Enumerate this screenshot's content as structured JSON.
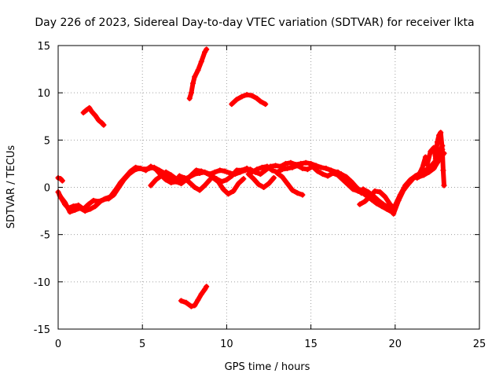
{
  "chart_data": {
    "type": "scatter",
    "title": "Day 226 of 2023, Sidereal Day-to-day VTEC variation (SDTVAR) for receiver lkta",
    "xlabel": "GPS time / hours",
    "ylabel": "SDTVAR / TECUs",
    "xlim": [
      0,
      25
    ],
    "ylim": [
      -15,
      15
    ],
    "xticks": [
      0,
      5,
      10,
      15,
      20,
      25
    ],
    "yticks": [
      -15,
      -10,
      -5,
      0,
      5,
      10,
      15
    ],
    "grid": true,
    "marker": "+",
    "color": "#ff0000",
    "series": [
      {
        "name": "main",
        "points": [
          [
            0.0,
            -0.5
          ],
          [
            0.2,
            -1.2
          ],
          [
            0.4,
            -1.8
          ],
          [
            0.6,
            -2.2
          ],
          [
            0.9,
            -2.0
          ],
          [
            1.2,
            -1.9
          ],
          [
            1.5,
            -2.3
          ],
          [
            1.8,
            -1.8
          ],
          [
            2.1,
            -1.4
          ],
          [
            2.4,
            -1.5
          ],
          [
            2.7,
            -1.3
          ],
          [
            3.0,
            -1.2
          ],
          [
            3.3,
            -0.8
          ],
          [
            3.6,
            0.0
          ],
          [
            3.9,
            0.8
          ],
          [
            4.2,
            1.4
          ],
          [
            4.5,
            1.8
          ],
          [
            4.8,
            2.0
          ],
          [
            5.1,
            1.9
          ],
          [
            5.4,
            2.0
          ],
          [
            5.7,
            2.1
          ],
          [
            6.0,
            1.8
          ],
          [
            6.3,
            1.5
          ],
          [
            6.6,
            1.0
          ],
          [
            6.9,
            0.8
          ],
          [
            7.2,
            0.7
          ],
          [
            7.5,
            0.9
          ],
          [
            7.8,
            1.1
          ],
          [
            8.1,
            1.4
          ],
          [
            8.4,
            1.5
          ],
          [
            8.7,
            1.6
          ],
          [
            9.0,
            1.4
          ],
          [
            9.3,
            1.6
          ],
          [
            9.6,
            1.8
          ],
          [
            9.9,
            1.7
          ],
          [
            10.2,
            1.5
          ],
          [
            10.5,
            1.4
          ],
          [
            10.8,
            1.6
          ],
          [
            11.1,
            1.8
          ],
          [
            11.4,
            1.9
          ],
          [
            11.7,
            1.6
          ],
          [
            12.0,
            1.4
          ],
          [
            12.3,
            1.8
          ],
          [
            12.6,
            2.2
          ],
          [
            12.9,
            2.3
          ],
          [
            13.2,
            2.2
          ],
          [
            13.5,
            2.5
          ],
          [
            13.8,
            2.6
          ],
          [
            14.1,
            2.4
          ],
          [
            14.4,
            2.5
          ],
          [
            14.7,
            2.6
          ],
          [
            15.0,
            2.5
          ],
          [
            15.3,
            2.3
          ],
          [
            15.6,
            2.1
          ],
          [
            15.9,
            2.0
          ],
          [
            16.2,
            1.8
          ],
          [
            16.5,
            1.6
          ],
          [
            16.8,
            1.4
          ],
          [
            17.1,
            1.1
          ],
          [
            17.4,
            0.6
          ],
          [
            17.7,
            0.0
          ],
          [
            18.0,
            -0.5
          ],
          [
            18.3,
            -0.9
          ],
          [
            18.6,
            -1.3
          ],
          [
            18.9,
            -1.7
          ],
          [
            19.2,
            -2.0
          ],
          [
            19.5,
            -2.3
          ],
          [
            19.8,
            -2.6
          ],
          [
            20.0,
            -1.9
          ],
          [
            20.3,
            -0.8
          ],
          [
            20.6,
            0.2
          ],
          [
            20.9,
            0.8
          ],
          [
            21.2,
            1.2
          ],
          [
            21.5,
            1.5
          ],
          [
            21.8,
            1.8
          ],
          [
            22.1,
            2.2
          ],
          [
            22.4,
            2.8
          ],
          [
            22.6,
            3.6
          ],
          [
            22.8,
            4.4
          ]
        ]
      },
      {
        "name": "main-b",
        "points": [
          [
            0.1,
            -0.9
          ],
          [
            0.4,
            -1.6
          ],
          [
            0.7,
            -2.6
          ],
          [
            1.0,
            -2.4
          ],
          [
            1.3,
            -2.2
          ],
          [
            1.6,
            -2.5
          ],
          [
            1.9,
            -2.3
          ],
          [
            2.2,
            -2.0
          ],
          [
            2.5,
            -1.5
          ],
          [
            2.8,
            -1.2
          ],
          [
            3.1,
            -1.0
          ],
          [
            3.4,
            -0.3
          ],
          [
            3.7,
            0.5
          ],
          [
            4.0,
            1.1
          ],
          [
            4.3,
            1.7
          ],
          [
            4.6,
            2.1
          ],
          [
            4.9,
            2.0
          ],
          [
            5.2,
            1.8
          ],
          [
            5.5,
            2.2
          ],
          [
            5.8,
            1.9
          ],
          [
            6.1,
            1.3
          ],
          [
            6.4,
            0.8
          ],
          [
            6.7,
            0.5
          ],
          [
            7.0,
            0.6
          ],
          [
            7.3,
            0.4
          ],
          [
            7.6,
            0.8
          ],
          [
            7.9,
            1.3
          ],
          [
            8.2,
            1.8
          ],
          [
            8.5,
            1.7
          ],
          [
            8.8,
            1.5
          ],
          [
            9.1,
            1.2
          ],
          [
            9.4,
            0.9
          ],
          [
            9.7,
            0.6
          ],
          [
            10.0,
            0.8
          ],
          [
            10.3,
            1.2
          ],
          [
            10.6,
            1.8
          ],
          [
            10.9,
            1.8
          ],
          [
            11.2,
            2.0
          ],
          [
            11.5,
            1.6
          ],
          [
            11.8,
            1.9
          ],
          [
            12.1,
            2.1
          ],
          [
            12.4,
            2.2
          ],
          [
            12.7,
            1.8
          ],
          [
            13.0,
            1.6
          ],
          [
            13.3,
            1.9
          ],
          [
            13.6,
            2.0
          ],
          [
            13.9,
            2.1
          ],
          [
            14.2,
            2.3
          ],
          [
            14.5,
            2.0
          ],
          [
            14.8,
            1.9
          ],
          [
            15.1,
            2.2
          ],
          [
            15.4,
            1.7
          ],
          [
            15.7,
            1.4
          ],
          [
            16.0,
            1.2
          ],
          [
            16.3,
            1.5
          ],
          [
            16.6,
            1.3
          ],
          [
            16.9,
            0.8
          ],
          [
            17.2,
            0.3
          ],
          [
            17.5,
            -0.2
          ],
          [
            17.8,
            -0.4
          ],
          [
            18.1,
            -0.2
          ],
          [
            18.4,
            -0.5
          ],
          [
            18.7,
            -0.9
          ],
          [
            19.0,
            -1.4
          ],
          [
            19.3,
            -1.8
          ],
          [
            19.6,
            -2.1
          ],
          [
            19.9,
            -2.8
          ],
          [
            20.2,
            -1.4
          ],
          [
            20.5,
            -0.3
          ],
          [
            20.8,
            0.4
          ],
          [
            21.1,
            1.0
          ],
          [
            21.4,
            1.1
          ],
          [
            21.7,
            1.3
          ],
          [
            22.0,
            1.6
          ],
          [
            22.3,
            2.0
          ],
          [
            22.5,
            2.6
          ],
          [
            22.7,
            3.2
          ],
          [
            22.9,
            3.6
          ]
        ]
      },
      {
        "name": "main-c",
        "points": [
          [
            5.5,
            0.2
          ],
          [
            5.8,
            0.8
          ],
          [
            6.1,
            1.2
          ],
          [
            6.4,
            1.6
          ],
          [
            6.7,
            1.3
          ],
          [
            7.0,
            0.9
          ],
          [
            7.3,
            0.6
          ]
        ]
      },
      {
        "name": "dip-1",
        "points": [
          [
            7.2,
            1.2
          ],
          [
            7.5,
            1.0
          ],
          [
            7.8,
            0.5
          ],
          [
            8.1,
            0.0
          ],
          [
            8.4,
            -0.3
          ],
          [
            8.7,
            0.2
          ],
          [
            9.0,
            0.8
          ]
        ]
      },
      {
        "name": "dip-2",
        "points": [
          [
            9.2,
            1.0
          ],
          [
            9.5,
            0.6
          ],
          [
            9.8,
            -0.2
          ],
          [
            10.1,
            -0.7
          ],
          [
            10.4,
            -0.4
          ],
          [
            10.7,
            0.4
          ],
          [
            11.0,
            0.9
          ]
        ]
      },
      {
        "name": "dip-3",
        "points": [
          [
            11.3,
            1.4
          ],
          [
            11.6,
            0.9
          ],
          [
            11.9,
            0.3
          ],
          [
            12.2,
            0.0
          ],
          [
            12.5,
            0.4
          ],
          [
            12.8,
            1.0
          ]
        ]
      },
      {
        "name": "dip-4",
        "points": [
          [
            13.0,
            1.5
          ],
          [
            13.3,
            1.1
          ],
          [
            13.6,
            0.4
          ],
          [
            13.9,
            -0.3
          ],
          [
            14.2,
            -0.6
          ],
          [
            14.5,
            -0.8
          ]
        ]
      },
      {
        "name": "dip-5",
        "points": [
          [
            16.6,
            1.6
          ],
          [
            16.9,
            1.2
          ],
          [
            17.2,
            0.6
          ],
          [
            17.5,
            0.1
          ],
          [
            17.8,
            -0.3
          ],
          [
            18.0,
            -0.6
          ]
        ]
      },
      {
        "name": "dip-6",
        "points": [
          [
            17.9,
            -1.8
          ],
          [
            18.2,
            -1.5
          ],
          [
            18.5,
            -1.0
          ],
          [
            18.8,
            -0.4
          ],
          [
            19.1,
            -0.5
          ],
          [
            19.4,
            -1.0
          ],
          [
            19.7,
            -1.8
          ],
          [
            19.9,
            -2.2
          ]
        ]
      },
      {
        "name": "spiky-end",
        "points": [
          [
            21.3,
            1.0
          ],
          [
            21.6,
            2.0
          ],
          [
            21.8,
            3.2
          ],
          [
            21.9,
            2.4
          ],
          [
            22.1,
            3.8
          ],
          [
            22.3,
            4.2
          ],
          [
            22.4,
            3.0
          ],
          [
            22.5,
            4.8
          ],
          [
            22.6,
            5.5
          ],
          [
            22.7,
            5.8
          ],
          [
            22.8,
            4.0
          ],
          [
            22.85,
            1.8
          ],
          [
            22.9,
            0.2
          ]
        ]
      },
      {
        "name": "left-stub",
        "points": [
          [
            0.0,
            1.0
          ],
          [
            0.15,
            0.9
          ],
          [
            0.25,
            0.7
          ]
        ]
      },
      {
        "name": "arc-early",
        "points": [
          [
            1.5,
            7.9
          ],
          [
            1.7,
            8.2
          ],
          [
            1.85,
            8.4
          ],
          [
            2.0,
            8.0
          ],
          [
            2.2,
            7.6
          ],
          [
            2.4,
            7.1
          ],
          [
            2.6,
            6.8
          ],
          [
            2.7,
            6.6
          ]
        ]
      },
      {
        "name": "steep-high",
        "points": [
          [
            7.8,
            9.4
          ],
          [
            7.9,
            10.0
          ],
          [
            8.0,
            11.0
          ],
          [
            8.1,
            11.7
          ],
          [
            8.3,
            12.4
          ],
          [
            8.5,
            13.3
          ],
          [
            8.7,
            14.3
          ],
          [
            8.8,
            14.6
          ]
        ]
      },
      {
        "name": "arc-mid",
        "points": [
          [
            10.3,
            8.8
          ],
          [
            10.6,
            9.3
          ],
          [
            10.9,
            9.6
          ],
          [
            11.2,
            9.8
          ],
          [
            11.5,
            9.7
          ],
          [
            11.8,
            9.4
          ],
          [
            12.0,
            9.1
          ],
          [
            12.3,
            8.8
          ]
        ]
      },
      {
        "name": "low-arc",
        "points": [
          [
            7.3,
            -12.0
          ],
          [
            7.6,
            -12.2
          ],
          [
            7.9,
            -12.6
          ],
          [
            8.1,
            -12.5
          ],
          [
            8.3,
            -11.9
          ],
          [
            8.5,
            -11.3
          ],
          [
            8.7,
            -10.8
          ],
          [
            8.8,
            -10.5
          ]
        ]
      }
    ]
  }
}
